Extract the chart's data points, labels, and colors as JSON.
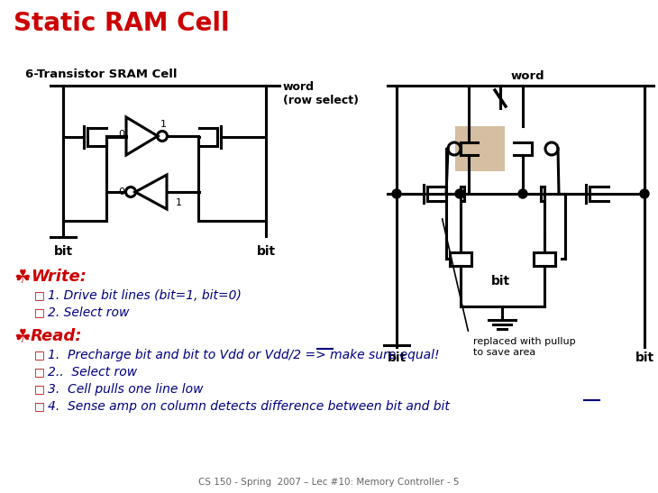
{
  "title": "Static RAM Cell",
  "title_color": "#CC0000",
  "title_fontsize": 20,
  "background_color": "#FFFFFF",
  "subtitle": "6-Transistor SRAM Cell",
  "footer": "CS 150 - Spring  2007 – Lec #10: Memory Controller - 5",
  "header_color": "#CC0000",
  "text_color": "#000080",
  "bullet_color": "#AA0000",
  "footer_color": "#666666",
  "black": "#000000"
}
